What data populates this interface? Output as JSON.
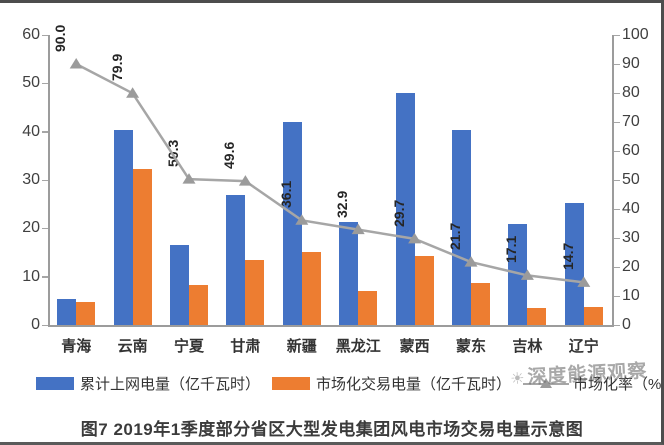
{
  "figure": {
    "caption": "图7 2019年1季度部分省区大型发电集团风电市场交易电量示意图",
    "watermark": "深度能源观察",
    "watermark_icon": "sun-icon"
  },
  "chart_data": {
    "type": "bar",
    "subtype": "grouped bars with overlaid line (dual axis combo)",
    "categories": [
      "青海",
      "云南",
      "宁夏",
      "甘肃",
      "新疆",
      "黑龙江",
      "蒙西",
      "蒙东",
      "吉林",
      "辽宁"
    ],
    "series": [
      {
        "name": "累计上网电量（亿千瓦时）",
        "type": "bar",
        "axis": "left",
        "color": "#4472C4",
        "values": [
          5.4,
          40.3,
          16.5,
          27.0,
          42.0,
          21.3,
          48.0,
          40.3,
          21.0,
          25.3
        ]
      },
      {
        "name": "市场化交易电量（亿千瓦时）",
        "type": "bar",
        "axis": "left",
        "color": "#ED7D31",
        "values": [
          4.8,
          32.2,
          8.3,
          13.4,
          15.2,
          7.0,
          14.3,
          8.7,
          3.6,
          3.7
        ]
      },
      {
        "name": "市场化率（%）",
        "type": "line",
        "axis": "right",
        "color": "#A6A6A6",
        "marker": "triangle",
        "marker_color": "#9B9B9B",
        "values": [
          90.0,
          79.9,
          50.3,
          49.6,
          36.1,
          32.9,
          29.7,
          21.7,
          17.1,
          14.7
        ]
      }
    ],
    "point_labels": [
      "90.0",
      "79.9",
      "50.3",
      "49.6",
      "36.1",
      "32.9",
      "29.7",
      "21.7",
      "17.1",
      "14.7"
    ],
    "left_axis": {
      "min": 0,
      "max": 60,
      "step": 10
    },
    "right_axis": {
      "min": 0,
      "max": 100,
      "step": 10
    },
    "grid": "off",
    "legend_position": "bottom",
    "title": "图7 2019年1季度部分省区大型发电集团风电市场交易电量示意图"
  }
}
